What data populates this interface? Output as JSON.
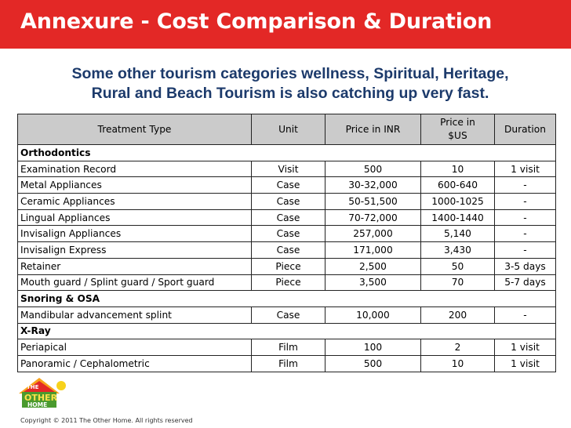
{
  "title": "Annexure - Cost Comparison & Duration",
  "subtitle_lines": [
    "Some other tourism categories  wellness, Spiritual, Heritage,",
    "Rural and Beach Tourism is also catching up very fast."
  ],
  "table": {
    "headers": {
      "treatment": "Treatment Type",
      "unit": "Unit",
      "price_inr": "Price in INR",
      "price_usd_line1": "Price in",
      "price_usd_line2": "$US",
      "duration": "Duration"
    },
    "rows": [
      {
        "type": "section",
        "name": "Orthodontics"
      },
      {
        "type": "item",
        "name": "Examination Record",
        "unit": "Visit",
        "inr": "500",
        "usd": "10",
        "duration": "1 visit"
      },
      {
        "type": "item",
        "name": "Metal Appliances",
        "unit": "Case",
        "inr": "30-32,000",
        "usd": "600-640",
        "duration": "-"
      },
      {
        "type": "item",
        "name": "Ceramic Appliances",
        "unit": "Case",
        "inr": "50-51,500",
        "usd": "1000-1025",
        "duration": "-"
      },
      {
        "type": "item",
        "name": "Lingual Appliances",
        "unit": "Case",
        "inr": "70-72,000",
        "usd": "1400-1440",
        "duration": "-"
      },
      {
        "type": "item",
        "name": "Invisalign Appliances",
        "unit": "Case",
        "inr": "257,000",
        "usd": "5,140",
        "duration": "-"
      },
      {
        "type": "item",
        "name": "Invisalign Express",
        "unit": "Case",
        "inr": "171,000",
        "usd": "3,430",
        "duration": "-"
      },
      {
        "type": "item",
        "name": "Retainer",
        "unit": "Piece",
        "inr": "2,500",
        "usd": "50",
        "duration": "3-5 days"
      },
      {
        "type": "item",
        "name": "Mouth guard / Splint guard / Sport guard",
        "unit": "Piece",
        "inr": "3,500",
        "usd": "70",
        "duration": "5-7 days"
      },
      {
        "type": "section",
        "name": "Snoring & OSA"
      },
      {
        "type": "item",
        "name": "Mandibular advancement splint",
        "unit": "Case",
        "inr": "10,000",
        "usd": "200",
        "duration": "-"
      },
      {
        "type": "section",
        "name": "X-Ray"
      },
      {
        "type": "item",
        "name": "Periapical",
        "unit": "Film",
        "inr": "100",
        "usd": "2",
        "duration": "1 visit"
      },
      {
        "type": "item",
        "name": "Panoramic / Cephalometric",
        "unit": "Film",
        "inr": "500",
        "usd": "10",
        "duration": "1 visit"
      }
    ]
  },
  "logo": {
    "line1": "THE",
    "line2": "OTHER",
    "line3": "HOME"
  },
  "copyright": "Copyright © 2011 The Other Home. All rights reserved",
  "colors": {
    "title_bar": "#e32826",
    "subtitle": "#1c3a6b",
    "header_fill": "#cbcbcb"
  }
}
